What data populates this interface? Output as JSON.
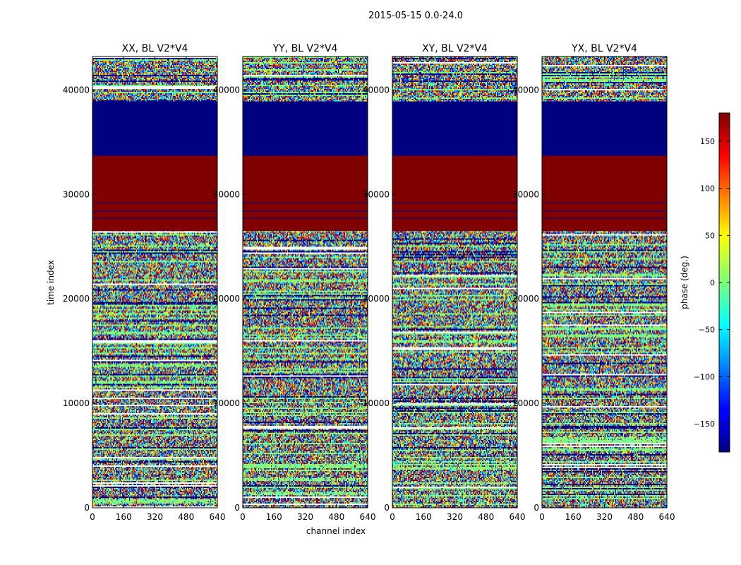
{
  "figure": {
    "suptitle": "2015-05-15 0.0-24.0"
  },
  "chart_data": {
    "type": "heatmap",
    "title": "2015-05-15 0.0-24.0",
    "xlabel": "channel index",
    "ylabel": "time index",
    "xlim": [
      0,
      640
    ],
    "ylim": [
      0,
      43200
    ],
    "x_ticks": [
      0,
      160,
      320,
      480,
      640
    ],
    "y_ticks": [
      0,
      10000,
      20000,
      30000,
      40000
    ],
    "panels": [
      {
        "title": "XX, BL V2*V4",
        "polarization": "XX"
      },
      {
        "title": "YY, BL V2*V4",
        "polarization": "YY"
      },
      {
        "title": "XY, BL V2*V4",
        "polarization": "XY"
      },
      {
        "title": "YX, BL V2*V4",
        "polarization": "YX"
      }
    ],
    "bands": [
      {
        "from": 33700,
        "to": 38900,
        "value": -180,
        "description": "flagged, constant phase"
      },
      {
        "from": 26500,
        "to": 33700,
        "value": 180,
        "description": "flagged, constant phase"
      },
      {
        "from": 0,
        "to": 26500,
        "value": null,
        "description": "random phase noise"
      },
      {
        "from": 38900,
        "to": 43200,
        "value": null,
        "description": "random phase noise"
      }
    ],
    "colorbar": {
      "label": "phase (deg.)",
      "range": [
        -180,
        180
      ],
      "ticks": [
        -150,
        -100,
        -50,
        0,
        50,
        100,
        150
      ],
      "tick_labels": [
        "−150",
        "−100",
        "−50",
        "0",
        "50",
        "100",
        "150"
      ],
      "colormap": "jet"
    }
  }
}
